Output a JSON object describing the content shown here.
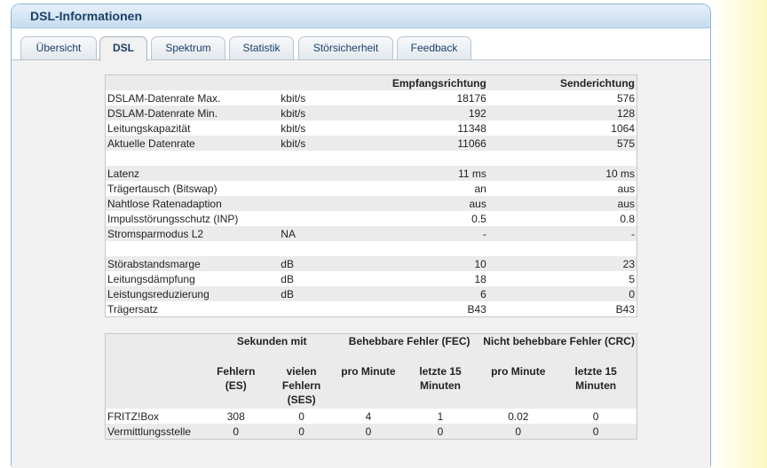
{
  "title": "DSL-Informationen",
  "tabs": [
    "Übersicht",
    "DSL",
    "Spektrum",
    "Statistik",
    "Störsicherheit",
    "Feedback"
  ],
  "active_tab": "DSL",
  "table1": {
    "headers": {
      "rx": "Empfangsrichtung",
      "tx": "Senderichtung"
    },
    "groups": [
      [
        {
          "label": "DSLAM-Datenrate Max.",
          "unit": "kbit/s",
          "rx": "18176",
          "tx": "576"
        },
        {
          "label": "DSLAM-Datenrate Min.",
          "unit": "kbit/s",
          "rx": "192",
          "tx": "128"
        },
        {
          "label": "Leitungskapazität",
          "unit": "kbit/s",
          "rx": "11348",
          "tx": "1064"
        },
        {
          "label": "Aktuelle Datenrate",
          "unit": "kbit/s",
          "rx": "11066",
          "tx": "575"
        }
      ],
      [
        {
          "label": "Latenz",
          "unit": "",
          "rx": "11 ms",
          "tx": "10 ms"
        },
        {
          "label": "Trägertausch (Bitswap)",
          "unit": "",
          "rx": "an",
          "tx": "aus"
        },
        {
          "label": "Nahtlose Ratenadaption",
          "unit": "",
          "rx": "aus",
          "tx": "aus"
        },
        {
          "label": "Impulsstörungsschutz (INP)",
          "unit": "",
          "rx": "0.5",
          "tx": "0.8"
        },
        {
          "label": "Stromsparmodus L2",
          "unit": "NA",
          "rx": "-",
          "tx": "-"
        }
      ],
      [
        {
          "label": "Störabstandsmarge",
          "unit": "dB",
          "rx": "10",
          "tx": "23"
        },
        {
          "label": "Leitungsdämpfung",
          "unit": "dB",
          "rx": "18",
          "tx": "5"
        },
        {
          "label": "Leistungsreduzierung",
          "unit": "dB",
          "rx": "6",
          "tx": "0"
        },
        {
          "label": "Trägersatz",
          "unit": "",
          "rx": "B43",
          "tx": "B43"
        }
      ]
    ]
  },
  "table2": {
    "group_headers": [
      "Sekunden mit",
      "Behebbare Fehler (FEC)",
      "Nicht behebbare Fehler (CRC)"
    ],
    "sub_headers": [
      "Fehlern (ES)",
      "vielen Fehlern (SES)",
      "pro Minute",
      "letzte 15 Minuten",
      "pro Minute",
      "letzte 15 Minuten"
    ],
    "rows": [
      {
        "label": "FRITZ!Box",
        "values": [
          "308",
          "0",
          "4",
          "1",
          "0.02",
          "0"
        ]
      },
      {
        "label": "Vermittlungsstelle",
        "values": [
          "0",
          "0",
          "0",
          "0",
          "0",
          "0"
        ]
      }
    ]
  }
}
